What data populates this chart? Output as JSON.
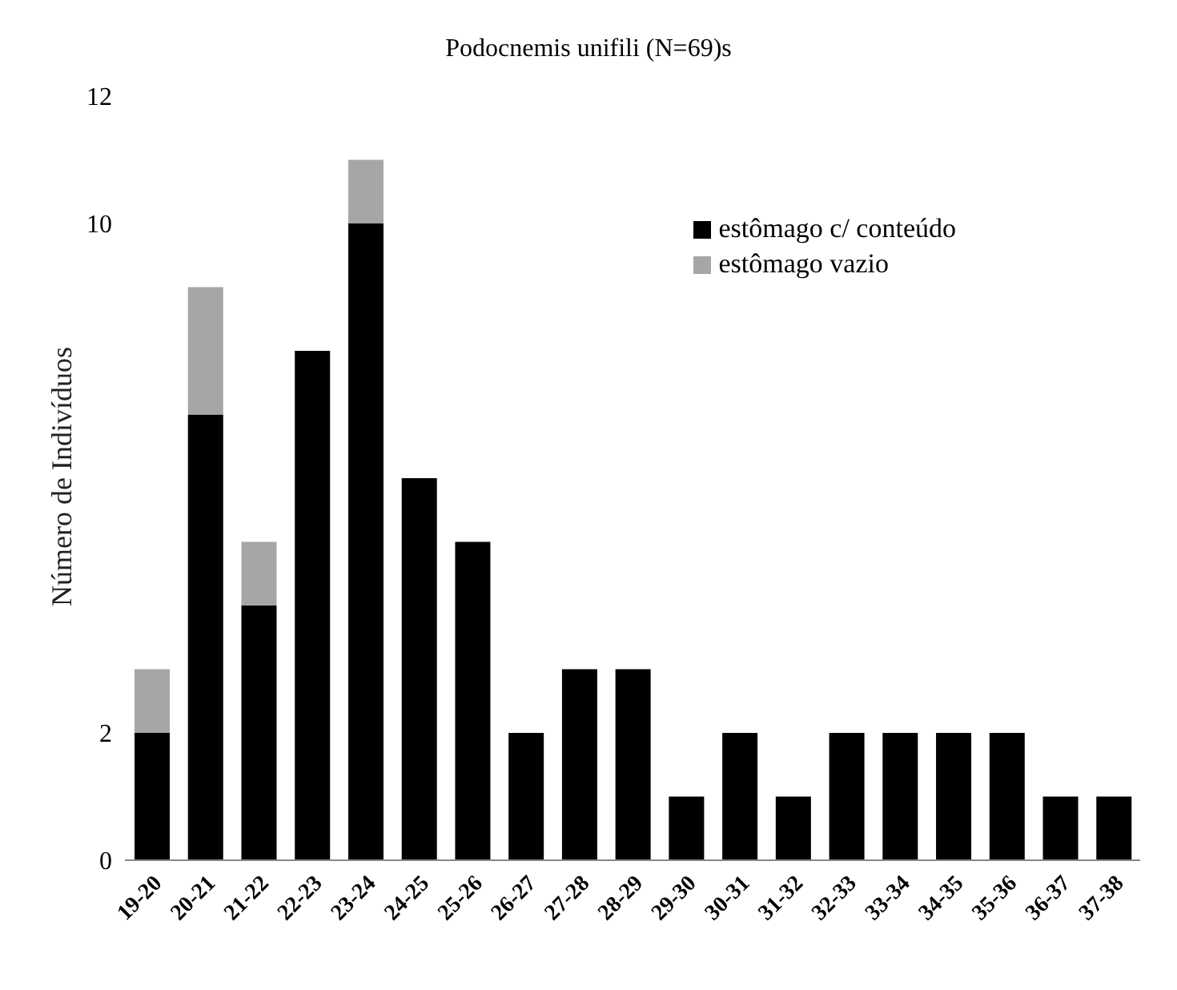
{
  "chart_data": {
    "type": "bar",
    "title": "Podocnemis unifili (N=69)s",
    "ylabel": "Número de Indivíduos",
    "categories": [
      "19-20",
      "20-21",
      "21-22",
      "22-23",
      "23-24",
      "24-25",
      "25-26",
      "26-27",
      "27-28",
      "28-29",
      "29-30",
      "30-31",
      "31-32",
      "32-33",
      "33-34",
      "34-35",
      "35-36",
      "36-37",
      "37-38"
    ],
    "series": [
      {
        "name": "estômago c/ conteúdo",
        "color": "#000000",
        "values": [
          2,
          7,
          4,
          8,
          10,
          6,
          5,
          2,
          3,
          3,
          1,
          2,
          1,
          2,
          2,
          2,
          2,
          1,
          1
        ]
      },
      {
        "name": "estômago vazio",
        "color": "#a6a6a6",
        "values": [
          1,
          2,
          1,
          0,
          1,
          0,
          0,
          0,
          0,
          0,
          0,
          0,
          0,
          0,
          0,
          0,
          0,
          0,
          0
        ]
      }
    ],
    "stacked": true,
    "ylim": [
      0,
      12
    ],
    "yticks": [
      0,
      2,
      10,
      12
    ],
    "grid": false,
    "legend": "top right"
  }
}
